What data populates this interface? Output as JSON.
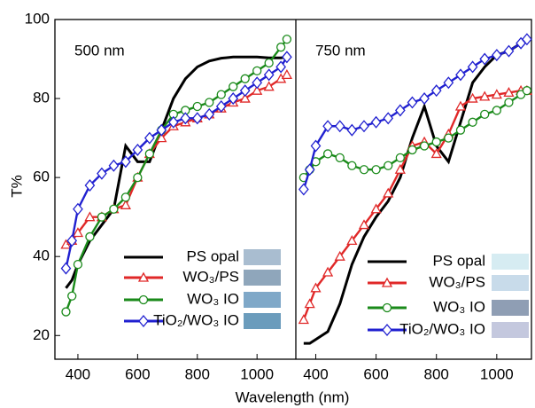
{
  "chart_data": [
    {
      "type": "line",
      "annotation": "500 nm",
      "y_label": "T%",
      "x_label": "Wavelength (nm)",
      "x": [
        360,
        380,
        400,
        440,
        480,
        520,
        560,
        600,
        640,
        680,
        720,
        760,
        800,
        840,
        880,
        920,
        960,
        1000,
        1040,
        1080,
        1100
      ],
      "xlim": [
        323,
        1130
      ],
      "xticks": [
        400,
        600,
        800,
        1000
      ],
      "ylim": [
        14,
        100
      ],
      "yticks": [
        20,
        40,
        60,
        80,
        100
      ],
      "series": [
        {
          "name": "PS opal",
          "color": "#000000",
          "marker": null,
          "values": [
            32,
            34,
            38,
            44,
            48,
            52,
            68,
            64,
            64,
            72,
            80,
            85,
            88,
            89.5,
            90.2,
            90.5,
            90.5,
            90.5,
            90.3,
            90.3,
            90.5
          ]
        },
        {
          "name": "WO₃/PS",
          "color": "#e02828",
          "marker": "triangle",
          "values": [
            43,
            44,
            46,
            50,
            50,
            52,
            53,
            60,
            66,
            70,
            73,
            74,
            75,
            76,
            77.5,
            79,
            80,
            82,
            83,
            85,
            86
          ]
        },
        {
          "name": "WO₃ IO",
          "color": "#1a8a1a",
          "marker": "circle",
          "values": [
            26,
            30,
            38,
            45,
            50,
            52,
            55,
            60,
            66,
            72,
            76,
            77,
            78,
            79,
            81,
            83,
            85,
            87,
            89,
            93,
            95
          ]
        },
        {
          "name": "TiO₂/WO₃ IO",
          "color": "#2020d0",
          "marker": "diamond",
          "values": [
            37,
            44,
            52,
            58,
            61,
            63,
            64,
            67,
            70,
            72,
            74,
            75,
            75,
            76,
            78,
            80,
            82,
            84,
            86,
            88,
            90.5
          ]
        }
      ]
    },
    {
      "type": "line",
      "annotation": "750 nm",
      "x": [
        360,
        380,
        400,
        440,
        480,
        520,
        560,
        600,
        640,
        680,
        720,
        760,
        800,
        840,
        880,
        920,
        960,
        1000,
        1040,
        1080,
        1100
      ],
      "xlim": [
        334,
        1115
      ],
      "xticks": [
        400,
        600,
        800,
        1000
      ],
      "ylim": [
        14,
        100
      ],
      "series": [
        {
          "name": "PS opal",
          "color": "#000000",
          "marker": null,
          "values": [
            18,
            18,
            19,
            21,
            28,
            38,
            45,
            50,
            54,
            60,
            70,
            78,
            68,
            64,
            74,
            84,
            88,
            91,
            92,
            94,
            94.5
          ]
        },
        {
          "name": "WO₃/PS",
          "color": "#e02828",
          "marker": "triangle",
          "values": [
            24,
            28,
            32,
            36,
            40,
            44,
            48,
            52,
            56,
            62,
            68,
            69,
            66,
            71,
            78,
            80,
            80.5,
            81,
            81.5,
            82,
            82
          ]
        },
        {
          "name": "WO₃ IO",
          "color": "#1a8a1a",
          "marker": "circle",
          "values": [
            60,
            62,
            64,
            66,
            65,
            63,
            62,
            62,
            63,
            65,
            67,
            68,
            69,
            70,
            72,
            74,
            76,
            77,
            79,
            81,
            82
          ]
        },
        {
          "name": "TiO₂/WO₃ IO",
          "color": "#2020d0",
          "marker": "diamond",
          "values": [
            57,
            62,
            68,
            73,
            73,
            72,
            73,
            74,
            75,
            77,
            79,
            80,
            82,
            84,
            86,
            88,
            90,
            91,
            92,
            94,
            95
          ]
        }
      ]
    }
  ]
}
